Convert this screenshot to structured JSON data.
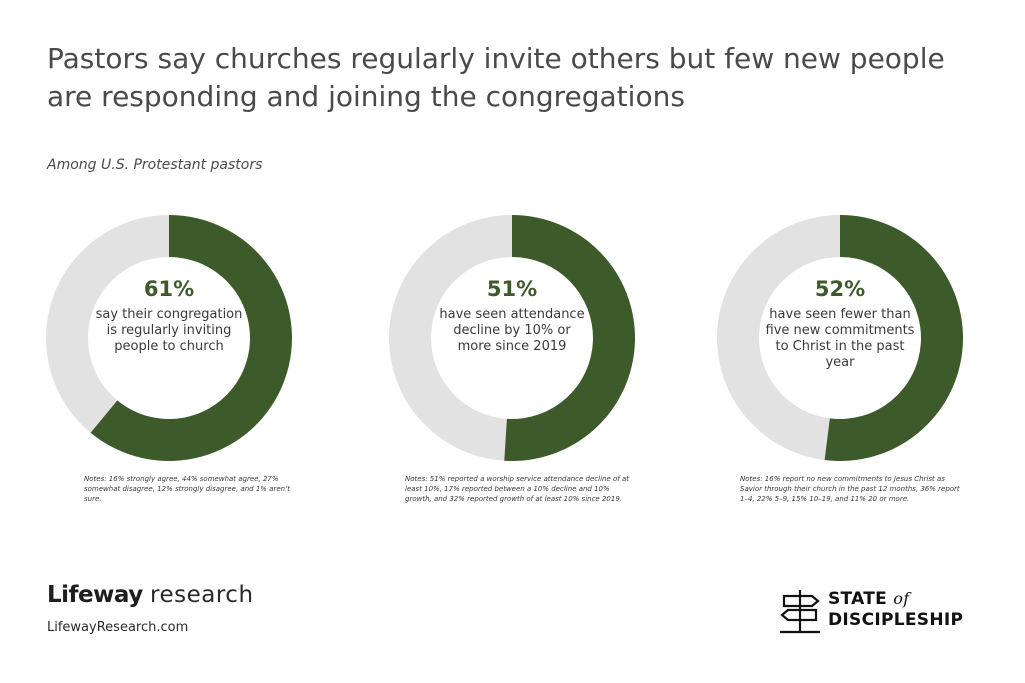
{
  "title": "Pastors say churches regularly invite others but few new people are responding and joining the congregations",
  "subtitle": "Among U.S. Protestant pastors",
  "colors": {
    "accent": "#3d5a2a",
    "remainder": "#e2e2e2"
  },
  "chart_data": [
    {
      "type": "pie",
      "donut": true,
      "value": 61,
      "percent_label": "61%",
      "description": "say their congregation is regularly inviting people to church",
      "note": "Notes: 16% strongly agree, 44% somewhat agree, 27% somewhat disagree, 12% strongly disagree, and 1% aren’t sure."
    },
    {
      "type": "pie",
      "donut": true,
      "value": 51,
      "percent_label": "51%",
      "description": "have seen attendance decline by 10% or more since 2019",
      "note": "Notes: 51% reported a worship service attendance decline of at least 10%, 17% reported between a 10% decline and 10% growth, and 32% reported growth of at least 10% since 2019."
    },
    {
      "type": "pie",
      "donut": true,
      "value": 52,
      "percent_label": "52%",
      "description": "have seen fewer than five new commitments to Christ in the past year",
      "note": "Notes: 16% report no new commitments to Jesus Christ as Savior through their church in the past 12 months, 36% report 1–4, 22% 5–9, 15% 10–19, and 11% 20 or more."
    }
  ],
  "footer": {
    "brand_bold": "Lifeway",
    "brand_light": "research",
    "url": "LifewayResearch.com",
    "logo_line1": "STATE",
    "logo_of": "of",
    "logo_line2": "DISCIPLESHIP"
  }
}
